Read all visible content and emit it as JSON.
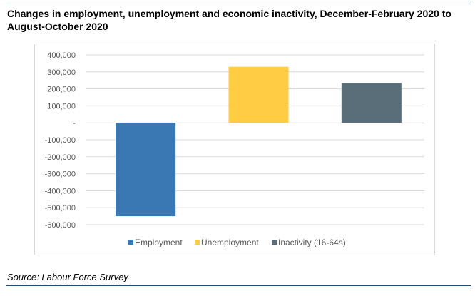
{
  "title": "Changes in employment, unemployment and economic inactivity, December-February 2020 to August-October 2020",
  "source": "Source: Labour Force Survey",
  "chart_data": {
    "type": "bar",
    "categories": [
      "Employment",
      "Unemployment",
      "Inactivity (16-64s)"
    ],
    "values": [
      -550000,
      330000,
      235000
    ],
    "colors": [
      "#3a78b4",
      "#ffcc44",
      "#5a6e7a"
    ],
    "ylim": [
      -600000,
      400000
    ],
    "yticks": [
      400000,
      300000,
      200000,
      100000,
      0,
      -100000,
      -200000,
      -300000,
      -400000,
      -500000,
      -600000
    ],
    "ytick_labels": [
      "400,000",
      "300,000",
      "200,000",
      "100,000",
      "-",
      "-100,000",
      "-200,000",
      "-300,000",
      "-400,000",
      "-500,000",
      "-600,000"
    ],
    "grid": true,
    "legend_position": "bottom"
  }
}
